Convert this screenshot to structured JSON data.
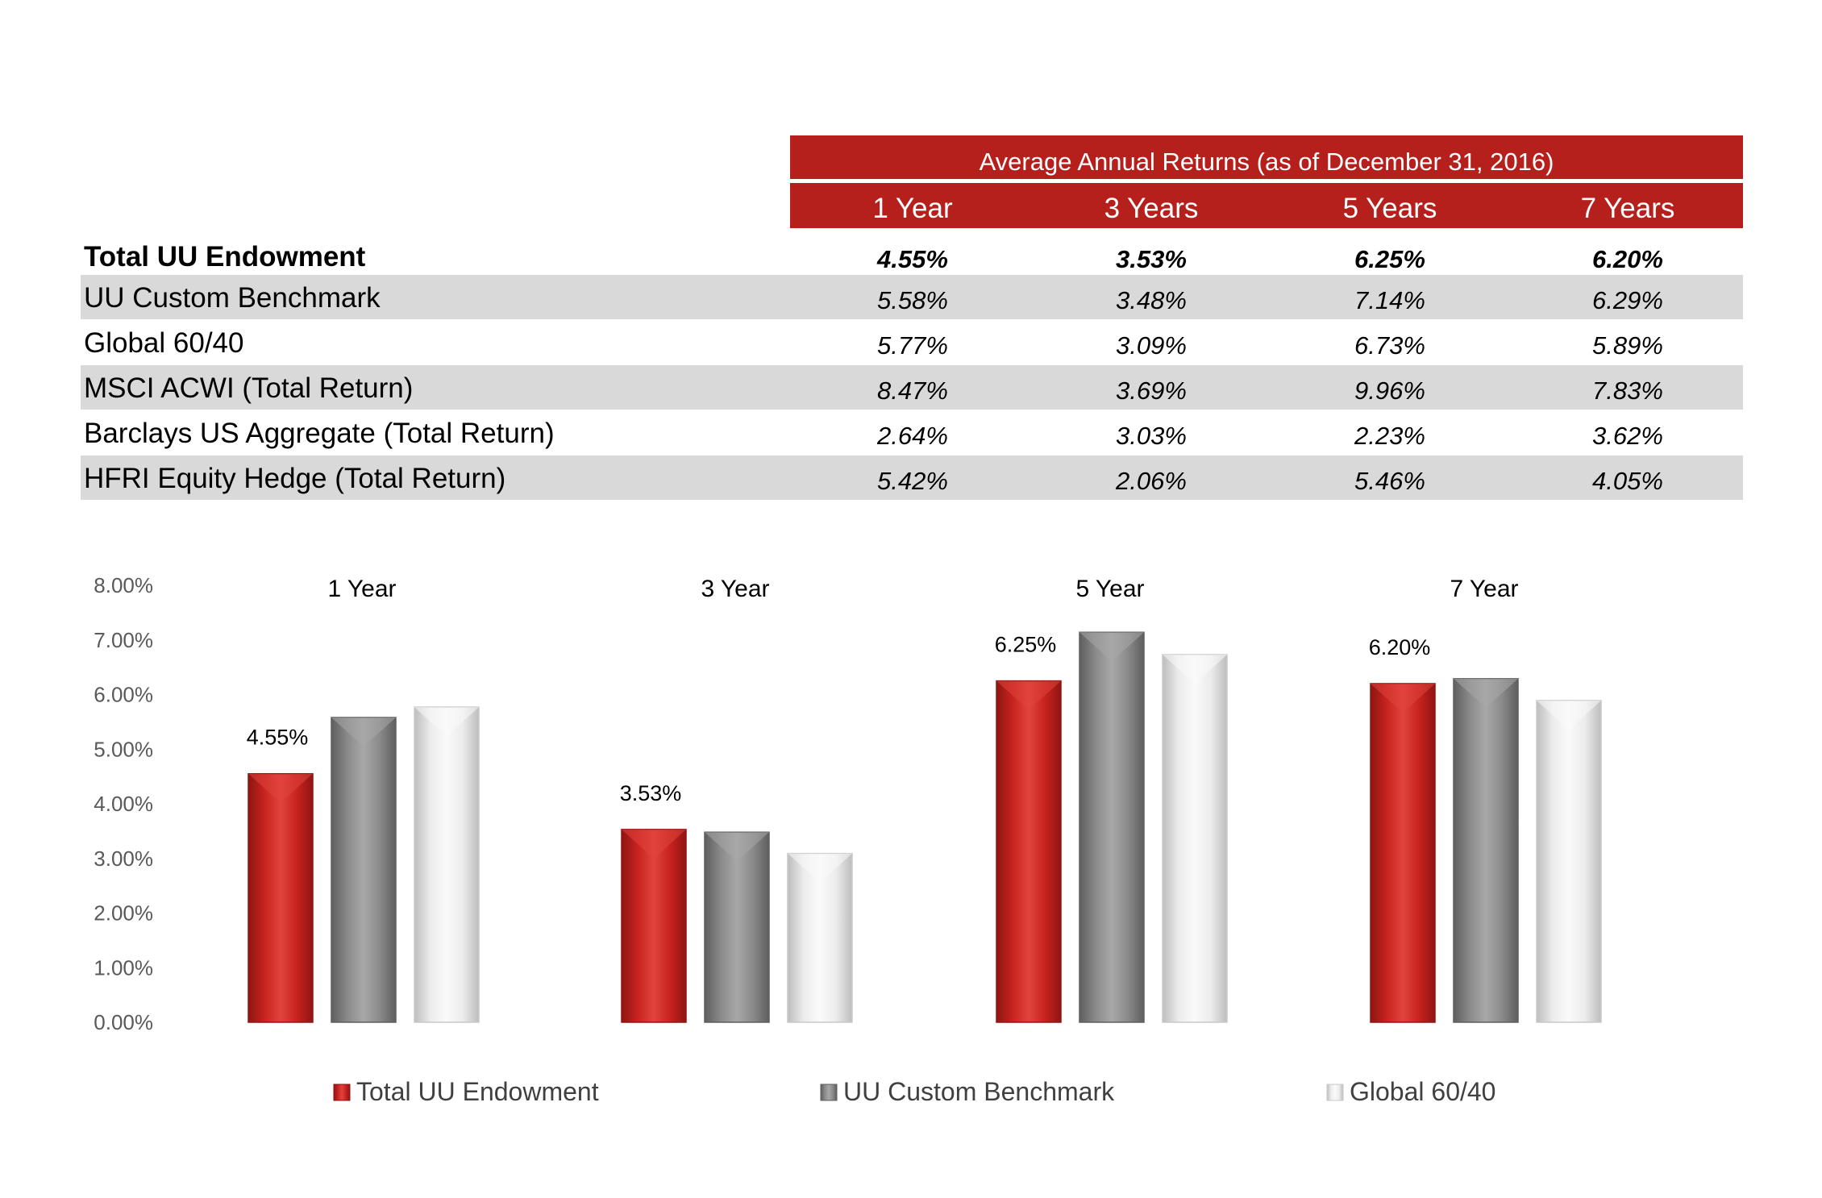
{
  "table": {
    "header_title": "Average Annual Returns (as of December 31, 2016)",
    "periods": [
      "1 Year",
      "3 Years",
      "5 Years",
      "7 Years"
    ],
    "rows": [
      {
        "label": "Total UU Endowment",
        "values": [
          "4.55%",
          "3.53%",
          "6.25%",
          "6.20%"
        ],
        "bold": true
      },
      {
        "label": "UU Custom Benchmark",
        "values": [
          "5.58%",
          "3.48%",
          "7.14%",
          "6.29%"
        ]
      },
      {
        "label": "Global 60/40",
        "values": [
          "5.77%",
          "3.09%",
          "6.73%",
          "5.89%"
        ]
      },
      {
        "label": "MSCI ACWI (Total Return)",
        "values": [
          "8.47%",
          "3.69%",
          "9.96%",
          "7.83%"
        ]
      },
      {
        "label": "Barclays US Aggregate (Total Return)",
        "values": [
          "2.64%",
          "3.03%",
          "2.23%",
          "3.62%"
        ]
      },
      {
        "label": "HFRI Equity Hedge (Total Return)",
        "values": [
          "5.42%",
          "2.06%",
          "5.46%",
          "4.05%"
        ]
      }
    ]
  },
  "colors": {
    "header_red": "#b5201c",
    "row_shade": "#d9d9d9",
    "endowment_red": "#c8231f",
    "benchmark_gray": "#8a8a8a",
    "global_white": "#ececec"
  },
  "chart_data": {
    "type": "bar",
    "categories": [
      "1 Year",
      "3 Year",
      "5 Year",
      "7 Year"
    ],
    "series": [
      {
        "name": "Total UU Endowment",
        "values": [
          4.55,
          3.53,
          6.25,
          6.2
        ]
      },
      {
        "name": "UU Custom Benchmark",
        "values": [
          5.58,
          3.48,
          7.14,
          6.29
        ]
      },
      {
        "name": "Global 60/40",
        "values": [
          5.77,
          3.09,
          6.73,
          5.89
        ]
      }
    ],
    "data_labels": [
      "4.55%",
      "3.53%",
      "6.25%",
      "6.20%"
    ],
    "y_ticks": [
      "0.00%",
      "1.00%",
      "2.00%",
      "3.00%",
      "4.00%",
      "5.00%",
      "6.00%",
      "7.00%",
      "8.00%"
    ],
    "ylim": [
      0,
      8
    ],
    "grid": false,
    "legend_position": "bottom"
  }
}
